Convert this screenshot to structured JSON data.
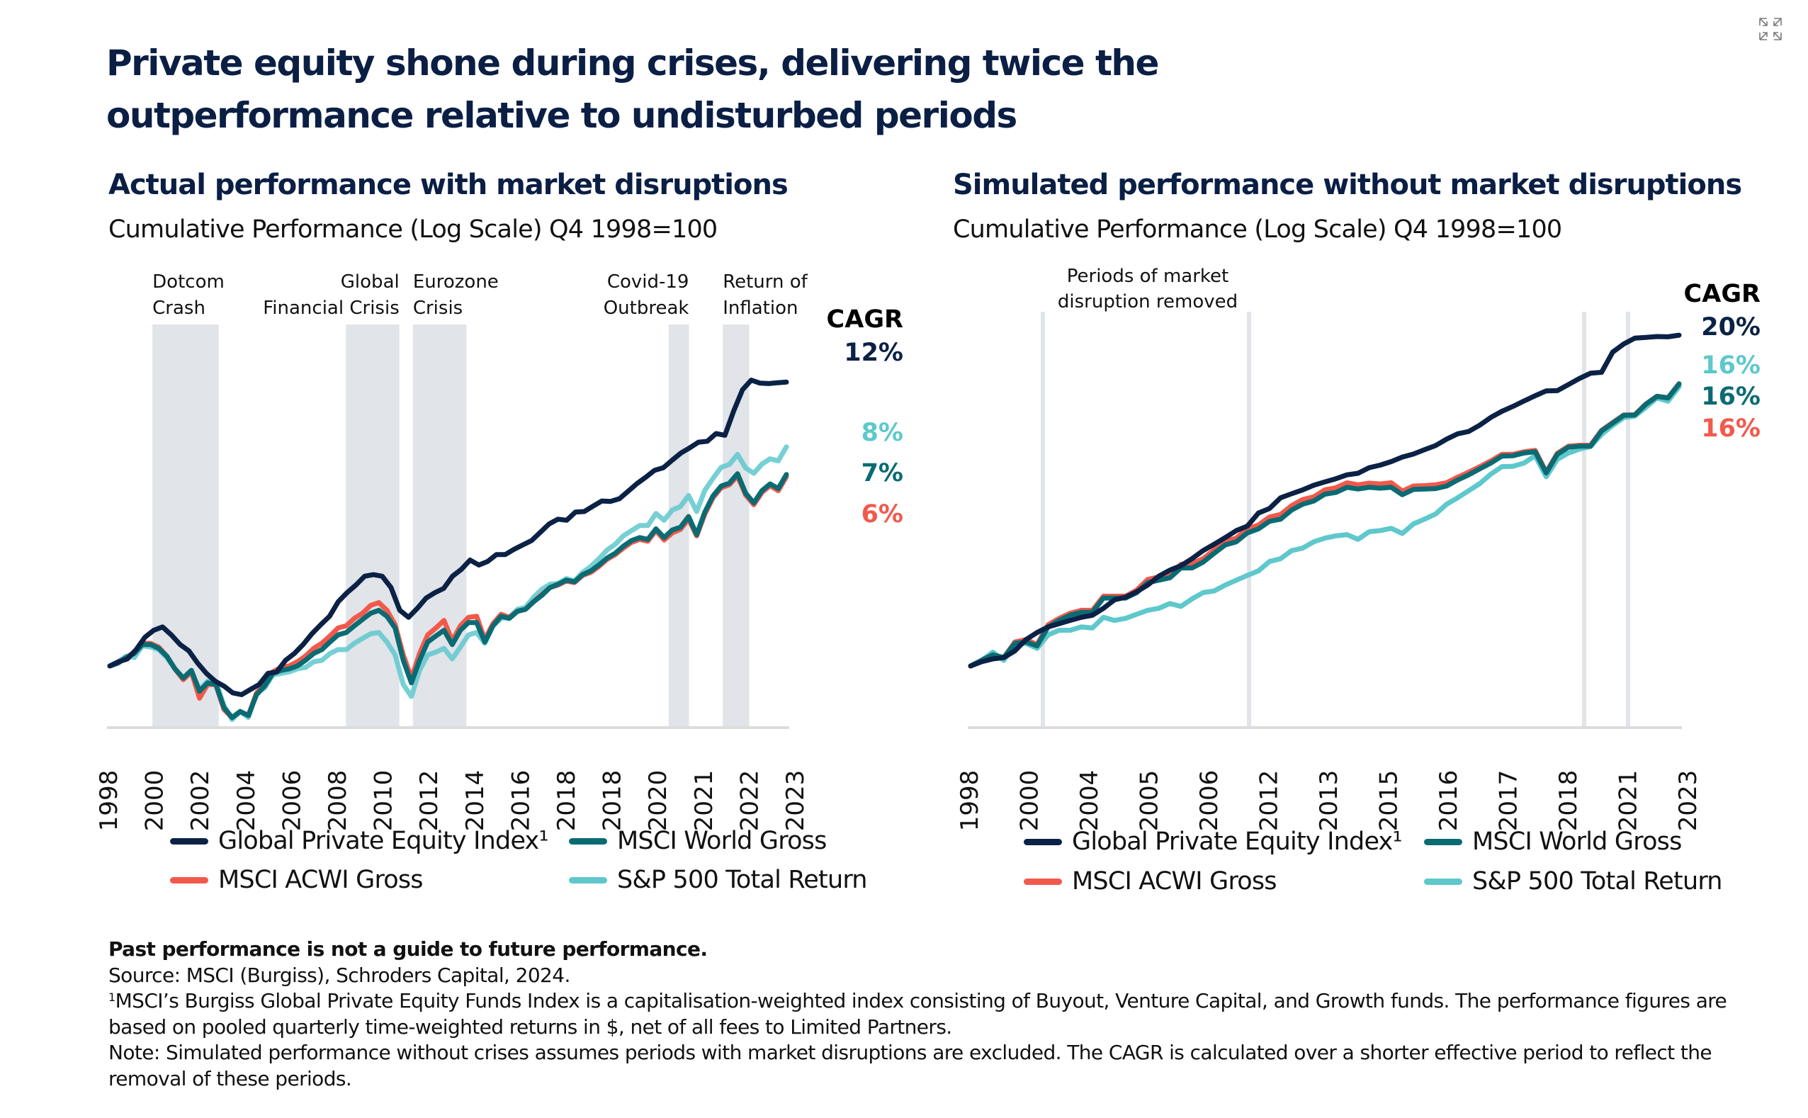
{
  "header": {
    "title": "Private equity shone during crises, delivering twice the outperformance relative to undisturbed periods",
    "resize_icon": "collapse-arrows-icon"
  },
  "colors": {
    "pe": "#0b2145",
    "world": "#0a6b73",
    "acwi": "#f2594b",
    "sp500": "#5ec8cc",
    "shade": "#e1e4e8",
    "axis": "#dcdcdc"
  },
  "legend": {
    "pe": "Global Private Equity Index¹",
    "world": "MSCI World Gross",
    "acwi": "MSCI ACWI Gross",
    "sp500": "S&P 500 Total Return"
  },
  "footer": {
    "disclaimer": "Past performance is not a guide to future performance.",
    "source": "Source: MSCI (Burgiss), Schroders Capital, 2024.",
    "footnote_marker": "1",
    "footnote": "MSCI’s Burgiss Global Private Equity Funds Index is a capitalisation-weighted index consisting of Buyout, Venture Capital, and Growth funds. The performance figures are based on pooled quarterly time-weighted returns in $, net of all fees to Limited Partners.",
    "note": "Note: Simulated performance without crises assumes periods with market disruptions are excluded. The CAGR is calculated over a shorter effective period to reflect the removal of these periods."
  },
  "chart_data": [
    {
      "type": "line",
      "title": "Actual performance with market disruptions",
      "subtitle": "Cumulative Performance (Log Scale) Q4 1998=100",
      "yscale": "log",
      "ylabel": "",
      "xlabel": "",
      "grid": false,
      "legend_position": "bottom",
      "x_tick_labels": [
        "1998",
        "2000",
        "2002",
        "2004",
        "2006",
        "2008",
        "2010",
        "2012",
        "2014",
        "2016",
        "2018",
        "2018",
        "2020",
        "2021",
        "2022",
        "2023"
      ],
      "shaded_periods": [
        {
          "label_line1": "Dotcom",
          "label_line2": "Crash",
          "start": 0.063,
          "end": 0.161,
          "label_align": "start"
        },
        {
          "label_line1": "Global",
          "label_line2": "Financial Crisis",
          "start": 0.349,
          "end": 0.428,
          "label_align": "end"
        },
        {
          "label_line1": "Eurozone",
          "label_line2": "Crisis",
          "start": 0.448,
          "end": 0.527,
          "label_align": "start"
        },
        {
          "label_line1": "Covid-19",
          "label_line2": "Outbreak",
          "start": 0.826,
          "end": 0.856,
          "label_align": "end"
        },
        {
          "label_line1": "Return of",
          "label_line2": "Inflation",
          "start": 0.906,
          "end": 0.945,
          "label_align": "start"
        }
      ],
      "cagr_title": "CAGR",
      "cagr": [
        {
          "series": "pe",
          "value": "12%"
        },
        {
          "series": "sp500",
          "value": "8%"
        },
        {
          "series": "world",
          "value": "7%"
        },
        {
          "series": "acwi",
          "value": "6%"
        }
      ],
      "ylim": [
        55,
        1000
      ],
      "series": [
        {
          "key": "pe",
          "name": "Global Private Equity Index¹",
          "values": [
            100,
            103,
            105,
            112,
            122,
            128,
            131,
            124,
            116,
            111,
            102,
            95,
            90,
            87,
            83,
            82,
            85,
            88,
            95,
            96,
            104,
            109,
            116,
            125,
            133,
            141,
            156,
            166,
            175,
            186,
            188,
            186,
            172,
            147,
            140,
            149,
            160,
            166,
            171,
            186,
            195,
            208,
            201,
            206,
            216,
            216,
            224,
            231,
            238,
            252,
            267,
            276,
            274,
            290,
            291,
            302,
            313,
            312,
            318,
            335,
            353,
            369,
            387,
            394,
            415,
            436,
            452,
            470,
            473,
            499,
            493,
            583,
            675,
            722,
            707,
            705,
            709,
            712
          ]
        },
        {
          "key": "world",
          "name": "MSCI World Gross",
          "values": [
            100,
            102,
            106,
            109,
            116,
            116,
            113,
            107,
            98,
            92,
            97,
            84,
            89,
            88,
            75,
            70,
            73,
            71,
            82,
            87,
            95,
            97,
            98,
            100,
            104,
            109,
            112,
            118,
            124,
            126,
            132,
            138,
            144,
            147,
            141,
            130,
            104,
            89,
            104,
            118,
            123,
            128,
            116,
            128,
            135,
            135,
            118,
            132,
            141,
            139,
            146,
            148,
            156,
            163,
            172,
            176,
            181,
            179,
            188,
            193,
            201,
            211,
            218,
            229,
            238,
            243,
            240,
            258,
            243,
            256,
            261,
            281,
            248,
            290,
            324,
            347,
            354,
            378,
            330,
            309,
            336,
            352,
            341,
            376
          ]
        },
        {
          "key": "acwi",
          "name": "MSCI ACWI Gross",
          "values": [
            100,
            102,
            106,
            110,
            117,
            117,
            114,
            107,
            98,
            91,
            96,
            80,
            88,
            88,
            74,
            70,
            73,
            71,
            83,
            88,
            96,
            99,
            100,
            103,
            107,
            113,
            117,
            123,
            130,
            132,
            139,
            144,
            152,
            155,
            147,
            133,
            108,
            92,
            109,
            124,
            130,
            137,
            119,
            132,
            140,
            141,
            120,
            134,
            143,
            140,
            146,
            148,
            156,
            164,
            172,
            175,
            180,
            178,
            187,
            191,
            199,
            209,
            216,
            226,
            235,
            240,
            237,
            255,
            239,
            251,
            257,
            276,
            246,
            286,
            320,
            343,
            350,
            372,
            326,
            305,
            332,
            348,
            336,
            370
          ]
        },
        {
          "key": "sp500",
          "name": "S&P 500 Total Return",
          "values": [
            100,
            103,
            107,
            106,
            115,
            114,
            112,
            106,
            98,
            92,
            96,
            85,
            90,
            90,
            76,
            69,
            73,
            70,
            83,
            86,
            94,
            95,
            96,
            98,
            99,
            103,
            104,
            109,
            112,
            112,
            117,
            121,
            125,
            126,
            118,
            108,
            88,
            81,
            97,
            108,
            110,
            113,
            105,
            114,
            124,
            126,
            117,
            132,
            139,
            140,
            148,
            150,
            161,
            170,
            176,
            177,
            183,
            180,
            191,
            199,
            210,
            223,
            232,
            246,
            255,
            264,
            264,
            287,
            274,
            294,
            301,
            325,
            291,
            337,
            366,
            395,
            403,
            432,
            393,
            379,
            404,
            419,
            413,
            455
          ]
        }
      ]
    },
    {
      "type": "line",
      "title": "Simulated performance without market disruptions",
      "subtitle": "Cumulative Performance (Log Scale) Q4 1998=100",
      "yscale": "log",
      "ylabel": "",
      "xlabel": "",
      "grid": false,
      "legend_position": "bottom",
      "x_tick_labels": [
        "1998",
        "2000",
        "2004",
        "2005",
        "2006",
        "2012",
        "2013",
        "2015",
        "2016",
        "2017",
        "2018",
        "2021",
        "2023"
      ],
      "disruption_markers": [
        0.102,
        0.393,
        0.866,
        0.928
      ],
      "annotation_line1": "Periods of market",
      "annotation_line2": "disruption removed",
      "cagr_title": "CAGR",
      "cagr": [
        {
          "series": "pe",
          "value": "20%"
        },
        {
          "series": "sp500",
          "value": "16%"
        },
        {
          "series": "world",
          "value": "16%"
        },
        {
          "series": "acwi",
          "value": "16%"
        }
      ],
      "ylim": [
        55,
        1000
      ],
      "series": [
        {
          "key": "pe",
          "name": "Global Private Equity Index¹",
          "values": [
            100,
            103,
            105,
            106,
            111,
            120,
            126,
            131,
            134,
            137,
            140,
            142,
            149,
            158,
            161,
            167,
            175,
            186,
            194,
            200,
            210,
            222,
            232,
            243,
            255,
            263,
            288,
            297,
            320,
            329,
            338,
            349,
            357,
            365,
            375,
            379,
            394,
            401,
            411,
            424,
            433,
            446,
            459,
            480,
            498,
            506,
            529,
            558,
            582,
            602,
            625,
            648,
            670,
            671,
            700,
            730,
            757,
            762,
            876,
            927,
            965,
            970,
            976,
            974,
            985
          ]
        },
        {
          "key": "world",
          "name": "MSCI World Gross",
          "values": [
            100,
            104,
            108,
            106,
            117,
            118,
            115,
            131,
            137,
            142,
            145,
            145,
            160,
            160,
            160,
            166,
            178,
            181,
            184,
            197,
            197,
            205,
            218,
            231,
            236,
            251,
            258,
            272,
            276,
            294,
            306,
            313,
            328,
            332,
            344,
            340,
            344,
            342,
            344,
            327,
            339,
            340,
            341,
            347,
            362,
            375,
            391,
            407,
            427,
            428,
            436,
            440,
            380,
            432,
            454,
            457,
            457,
            508,
            536,
            566,
            567,
            611,
            645,
            638,
            703
          ]
        },
        {
          "key": "acwi",
          "name": "MSCI ACWI Gross",
          "values": [
            100,
            104,
            108,
            106,
            118,
            120,
            116,
            133,
            139,
            144,
            147,
            147,
            162,
            162,
            162,
            169,
            182,
            185,
            188,
            202,
            203,
            210,
            223,
            237,
            242,
            258,
            265,
            280,
            285,
            303,
            316,
            322,
            338,
            343,
            355,
            350,
            354,
            352,
            355,
            335,
            347,
            348,
            350,
            355,
            369,
            382,
            397,
            413,
            432,
            432,
            440,
            444,
            382,
            435,
            457,
            460,
            460,
            510,
            538,
            567,
            568,
            612,
            646,
            639,
            704
          ]
        },
        {
          "key": "sp500",
          "name": "S&P 500 Total Return",
          "values": [
            100,
            104,
            110,
            104,
            116,
            117,
            113,
            124,
            128,
            128,
            131,
            130,
            140,
            137,
            139,
            143,
            147,
            149,
            154,
            151,
            159,
            166,
            168,
            175,
            181,
            187,
            193,
            206,
            210,
            222,
            226,
            236,
            242,
            246,
            248,
            240,
            253,
            255,
            259,
            250,
            267,
            276,
            286,
            306,
            320,
            336,
            353,
            377,
            397,
            398,
            407,
            428,
            370,
            417,
            436,
            448,
            456,
            496,
            528,
            557,
            563,
            598,
            638,
            624,
            690
          ]
        }
      ]
    }
  ]
}
